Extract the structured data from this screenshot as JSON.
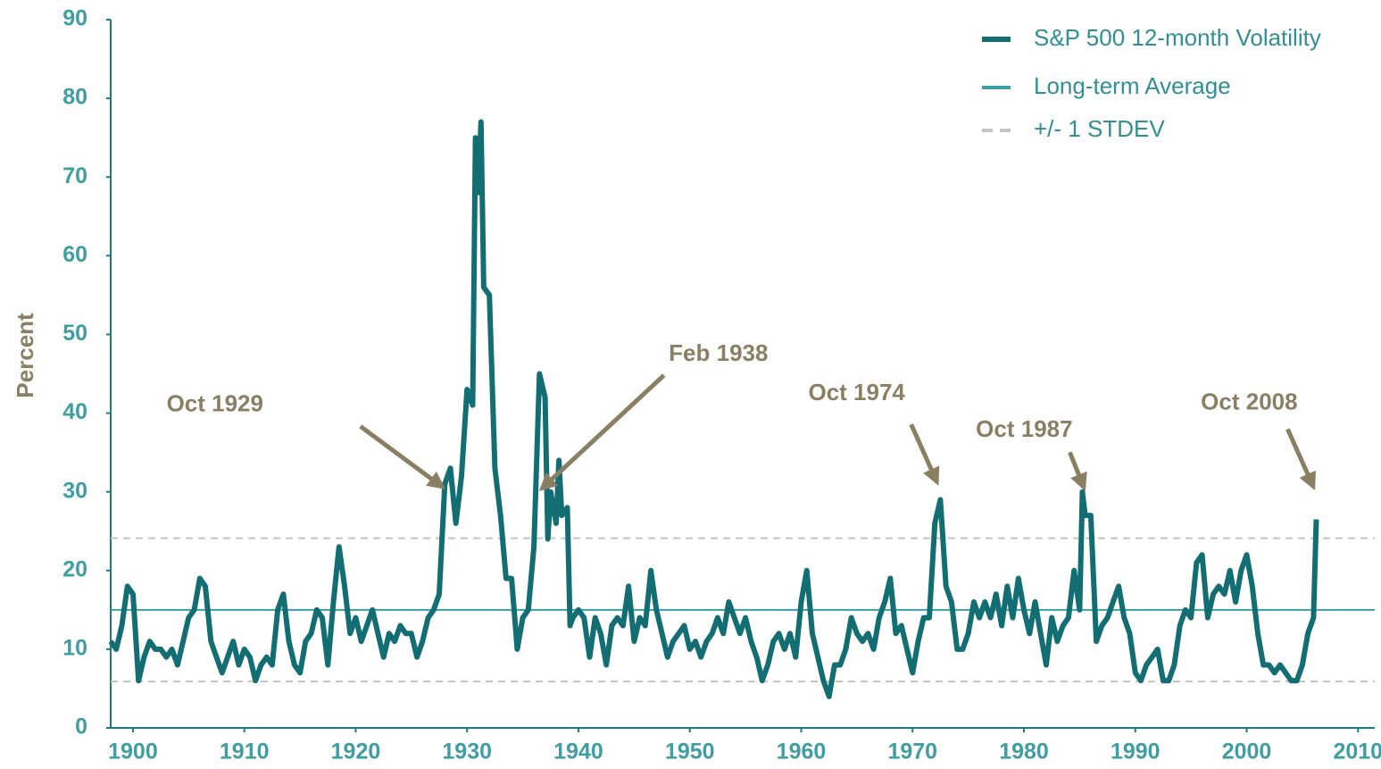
{
  "chart_data": {
    "type": "line",
    "ylabel": "Percent",
    "xlim": [
      1898,
      2011.5
    ],
    "ylim": [
      0,
      90
    ],
    "xticks": [
      1900,
      1910,
      1920,
      1930,
      1940,
      1950,
      1960,
      1970,
      1980,
      1990,
      2000,
      2010
    ],
    "yticks": [
      0,
      10,
      20,
      30,
      40,
      50,
      60,
      70,
      80,
      90
    ],
    "grid": false,
    "legend": "upper right",
    "series": [
      {
        "name": "S&P 500 12-month Volatility",
        "color": "#136e74",
        "x": [
          1898,
          1898.5,
          1899,
          1899.5,
          1900,
          1900.5,
          1901,
          1901.5,
          1902,
          1902.5,
          1903,
          1903.5,
          1904,
          1904.5,
          1905,
          1905.5,
          1906,
          1906.5,
          1907,
          1907.5,
          1908,
          1908.5,
          1909,
          1909.5,
          1910,
          1910.5,
          1911,
          1911.5,
          1912,
          1912.5,
          1913,
          1913.5,
          1914,
          1914.5,
          1915,
          1915.5,
          1916,
          1916.5,
          1917,
          1917.5,
          1918,
          1918.5,
          1919,
          1919.5,
          1920,
          1920.5,
          1921,
          1921.5,
          1922,
          1922.5,
          1923,
          1923.5,
          1924,
          1924.5,
          1925,
          1925.5,
          1926,
          1926.5,
          1927,
          1927.5,
          1928,
          1928.5,
          1929,
          1929.5,
          1930,
          1930.5,
          1930.75,
          1931,
          1931.25,
          1931.5,
          1932,
          1932.5,
          1933,
          1933.5,
          1934,
          1934.5,
          1935,
          1935.5,
          1936,
          1936.5,
          1937,
          1937.25,
          1937.5,
          1938,
          1938.25,
          1938.5,
          1939,
          1939.25,
          1939.5,
          1940,
          1940.5,
          1941,
          1941.5,
          1942,
          1942.5,
          1943,
          1943.5,
          1944,
          1944.5,
          1945,
          1945.5,
          1946,
          1946.5,
          1947,
          1947.5,
          1948,
          1948.5,
          1949,
          1949.5,
          1950,
          1950.5,
          1951,
          1951.5,
          1952,
          1952.5,
          1953,
          1953.5,
          1954,
          1954.5,
          1955,
          1955.5,
          1956,
          1956.5,
          1957,
          1957.5,
          1958,
          1958.5,
          1959,
          1959.5,
          1960,
          1960.5,
          1961,
          1961.5,
          1962,
          1962.5,
          1963,
          1963.5,
          1964,
          1964.5,
          1965,
          1965.5,
          1966,
          1966.5,
          1967,
          1967.5,
          1968,
          1968.5,
          1969,
          1969.5,
          1970,
          1970.5,
          1971,
          1971.5,
          1972,
          1972.5,
          1973,
          1973.5,
          1974,
          1974.5,
          1975,
          1975.5,
          1976,
          1976.5,
          1977,
          1977.5,
          1978,
          1978.5,
          1979,
          1979.5,
          1980,
          1980.5,
          1981,
          1981.5,
          1982,
          1982.5,
          1983,
          1983.5,
          1984,
          1984.5,
          1985,
          1985.25,
          1985.5,
          1986,
          1986.5,
          1987,
          1987.5,
          1988,
          1988.5,
          1989,
          1989.5,
          1990,
          1990.5,
          1991,
          1991.5,
          1992,
          1992.5,
          1993,
          1993.5,
          1994,
          1994.5,
          1995,
          1995.5,
          1996,
          1996.5,
          1997,
          1997.5,
          1998,
          1998.5,
          1999,
          1999.5,
          2000,
          2000.5,
          2001,
          2001.5,
          2002,
          2002.5,
          2003,
          2003.5,
          2004,
          2004.5,
          2005,
          2005.5,
          2006,
          2006.25
        ],
        "values": [
          11,
          10,
          13,
          18,
          17,
          6,
          9,
          11,
          10,
          10,
          9,
          10,
          8,
          11,
          14,
          15,
          19,
          18,
          11,
          9,
          7,
          9,
          11,
          8,
          10,
          9,
          6,
          8,
          9,
          8,
          15,
          17,
          11,
          8,
          7,
          11,
          12,
          15,
          14,
          8,
          16,
          23,
          18,
          12,
          14,
          11,
          13,
          15,
          12,
          9,
          12,
          11,
          13,
          12,
          12,
          9,
          11,
          14,
          15,
          17,
          31,
          33,
          26,
          32,
          43,
          41,
          75,
          68,
          77,
          56,
          55,
          33,
          27,
          19,
          19,
          10,
          14,
          15,
          23,
          45,
          42,
          24,
          30,
          26,
          34,
          27,
          28,
          13,
          14,
          15,
          14,
          9,
          14,
          12,
          8,
          13,
          14,
          13,
          18,
          11,
          14,
          13,
          20,
          15,
          12,
          9,
          11,
          12,
          13,
          10,
          11,
          9,
          11,
          12,
          14,
          12,
          16,
          14,
          12,
          14,
          11,
          9,
          6,
          8,
          11,
          12,
          10,
          12,
          9,
          16,
          20,
          12,
          9,
          6,
          4,
          8,
          8,
          10,
          14,
          12,
          11,
          12,
          10,
          14,
          16,
          19,
          12,
          13,
          10,
          7,
          11,
          14,
          14,
          26,
          29,
          18,
          16,
          10,
          10,
          12,
          16,
          14,
          16,
          14,
          17,
          13,
          18,
          14,
          19,
          15,
          12,
          16,
          12,
          8,
          14,
          11,
          13,
          14,
          20,
          15,
          30,
          27,
          27,
          11,
          13,
          14,
          16,
          18,
          14,
          12,
          7,
          6,
          8,
          9,
          10,
          6,
          6,
          8,
          13,
          15,
          14,
          21,
          22,
          14,
          17,
          18,
          17,
          20,
          16,
          20,
          22,
          18,
          12,
          8,
          8,
          7,
          8,
          7,
          6,
          6,
          8,
          12,
          14,
          26.5
        ]
      }
    ],
    "reference_lines": [
      {
        "name": "Long-term Average",
        "color": "#3f9ea2",
        "dashed": false,
        "values": [
          15
        ]
      },
      {
        "name": "+/- 1 STDEV",
        "color": "#c4c4c4",
        "dashed": true,
        "values": [
          5.9,
          24.1
        ]
      }
    ],
    "annotation_color": "#8b7f63",
    "annotations": [
      {
        "text": "Oct 1929",
        "x": 1927.8,
        "y": 30.6
      },
      {
        "text": "Feb 1938",
        "x": 1936.7,
        "y": 30.4
      },
      {
        "text": "Oct 1974",
        "x": 1972.2,
        "y": 31.2
      },
      {
        "text": "Oct 1987",
        "x": 1985.4,
        "y": 30.5
      },
      {
        "text": "Oct 2008",
        "x": 2006.0,
        "y": 30.6
      }
    ]
  }
}
